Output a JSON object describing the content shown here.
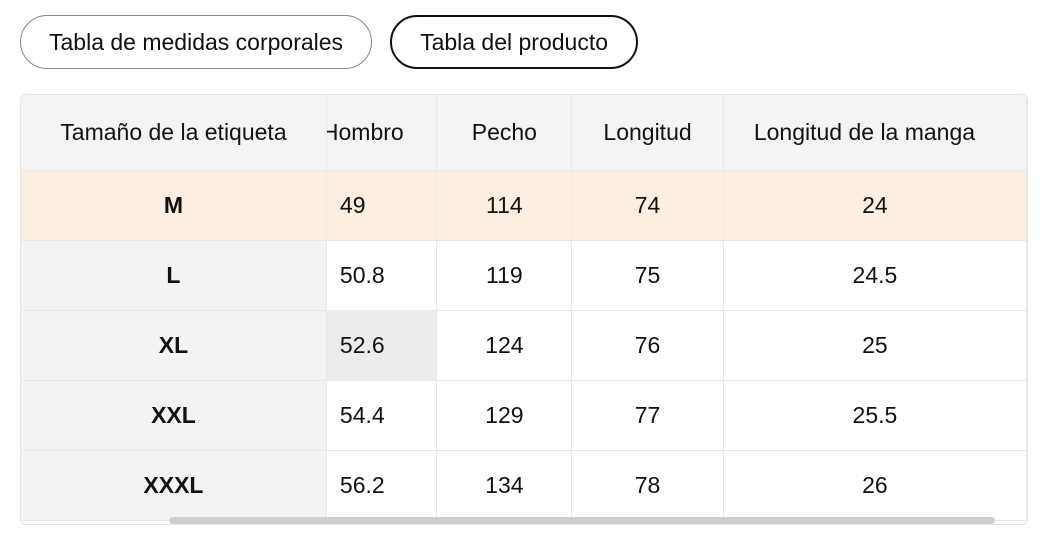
{
  "tabs": {
    "body_measurements": "Tabla de medidas corporales",
    "product_table": "Tabla del producto"
  },
  "table": {
    "headers": [
      "Tamaño de la etiqueta",
      "Hombro",
      "Pecho",
      "Longitud",
      "Longitud de la manga"
    ],
    "rows": [
      [
        "M",
        "49",
        "114",
        "74",
        "24"
      ],
      [
        "L",
        "50.8",
        "119",
        "75",
        "24.5"
      ],
      [
        "XL",
        "52.6",
        "124",
        "76",
        "25"
      ],
      [
        "XXL",
        "54.4",
        "129",
        "77",
        "25.5"
      ],
      [
        "XXXL",
        "56.2",
        "134",
        "78",
        "26"
      ]
    ]
  },
  "colors": {
    "selected_row": "#fcefe2",
    "header_bg": "#f4f4f4"
  }
}
